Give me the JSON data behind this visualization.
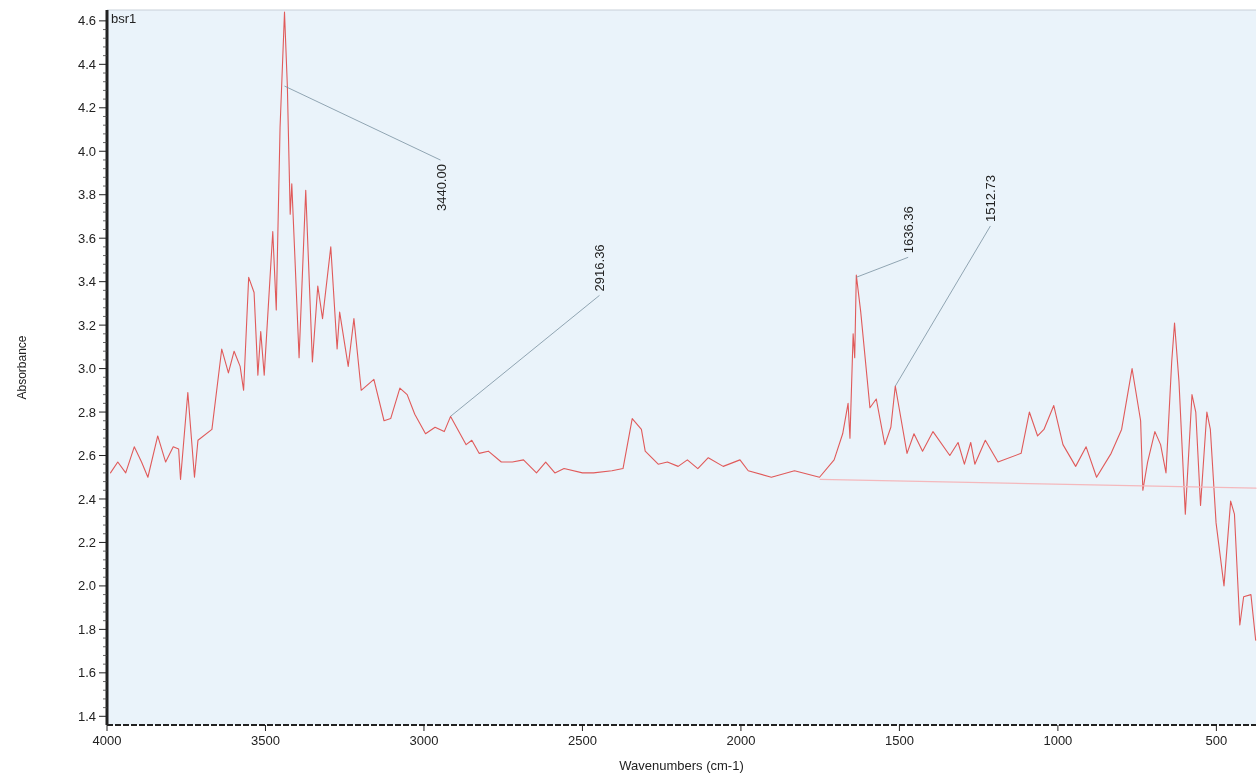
{
  "chart_data": {
    "type": "line",
    "title": "bsr1",
    "xlabel": "Wavenumbers (cm-1)",
    "ylabel": "Absorbance",
    "xlim": [
      4000,
      375
    ],
    "xticks": [
      4000,
      3500,
      3000,
      2500,
      2000,
      1500,
      1000,
      500
    ],
    "ylim": [
      1.36,
      4.65
    ],
    "yticks": [
      1.4,
      1.6,
      1.8,
      {
        "value": 2,
        "label": "2.0"
      },
      2.2,
      2.4,
      2.6,
      2.8,
      {
        "value": 3,
        "label": "3.0"
      },
      3.2,
      3.4,
      3.6,
      3.8,
      {
        "value": 4,
        "label": "4.0"
      },
      4.2,
      4.4,
      4.6
    ],
    "grid": false,
    "marker": "none",
    "line_style": "solid",
    "series": [
      {
        "color": "#e05a5a",
        "x": [
          3989,
          3966,
          3941,
          3914,
          3891,
          3871,
          3840,
          3815,
          3791,
          3774,
          3768,
          3745,
          3724,
          3713,
          3669,
          3638,
          3617,
          3599,
          3580,
          3569,
          3553,
          3536,
          3524,
          3515,
          3504,
          3477,
          3466,
          3454,
          3440,
          3431,
          3422,
          3417,
          3408,
          3394,
          3373,
          3352,
          3335,
          3320,
          3294,
          3274,
          3266,
          3239,
          3221,
          3198,
          3158,
          3126,
          3105,
          3076,
          3053,
          3029,
          2995,
          2965,
          2936,
          2916,
          2867,
          2849,
          2826,
          2797,
          2756,
          2721,
          2686,
          2645,
          2616,
          2587,
          2558,
          2500,
          2465,
          2407,
          2372,
          2343,
          2314,
          2302,
          2261,
          2232,
          2198,
          2169,
          2136,
          2103,
          2056,
          2003,
          1977,
          1904,
          1831,
          1752,
          1706,
          1679,
          1662,
          1656,
          1646,
          1641,
          1636,
          1622,
          1593,
          1573,
          1546,
          1527,
          1513,
          1476,
          1454,
          1427,
          1394,
          1341,
          1315,
          1295,
          1275,
          1262,
          1229,
          1189,
          1116,
          1090,
          1064,
          1044,
          1013,
          984,
          944,
          911,
          878,
          832,
          799,
          766,
          739,
          732,
          717,
          694,
          676,
          659,
          641,
          632,
          618,
          598,
          577,
          565,
          550,
          530,
          519,
          501,
          476,
          455,
          443,
          426,
          414,
          391,
          376
        ],
        "values": [
          2.52,
          2.57,
          2.52,
          2.64,
          2.57,
          2.5,
          2.69,
          2.57,
          2.64,
          2.63,
          2.49,
          2.89,
          2.5,
          2.67,
          2.72,
          3.09,
          2.98,
          3.08,
          3.01,
          2.9,
          3.42,
          3.35,
          2.97,
          3.17,
          2.97,
          3.63,
          3.27,
          4.11,
          4.64,
          4.3,
          3.71,
          3.85,
          3.54,
          3.05,
          3.82,
          3.03,
          3.38,
          3.23,
          3.56,
          3.09,
          3.26,
          3.01,
          3.23,
          2.9,
          2.95,
          2.76,
          2.77,
          2.91,
          2.88,
          2.79,
          2.7,
          2.73,
          2.71,
          2.78,
          2.65,
          2.67,
          2.61,
          2.62,
          2.57,
          2.57,
          2.58,
          2.52,
          2.57,
          2.52,
          2.54,
          2.52,
          2.52,
          2.53,
          2.54,
          2.77,
          2.72,
          2.62,
          2.56,
          2.57,
          2.55,
          2.58,
          2.54,
          2.59,
          2.55,
          2.58,
          2.53,
          2.5,
          2.53,
          2.5,
          2.58,
          2.7,
          2.84,
          2.68,
          3.16,
          3.05,
          3.43,
          3.26,
          2.82,
          2.86,
          2.65,
          2.73,
          2.92,
          2.61,
          2.7,
          2.62,
          2.71,
          2.6,
          2.66,
          2.56,
          2.66,
          2.56,
          2.67,
          2.57,
          2.61,
          2.8,
          2.69,
          2.72,
          2.83,
          2.65,
          2.55,
          2.64,
          2.5,
          2.61,
          2.72,
          3.0,
          2.76,
          2.44,
          2.57,
          2.71,
          2.65,
          2.52,
          3.03,
          3.21,
          2.94,
          2.33,
          2.88,
          2.8,
          2.37,
          2.8,
          2.72,
          2.29,
          2.0,
          2.39,
          2.33,
          1.82,
          1.95,
          1.96,
          1.75
        ]
      },
      {
        "color": "#f4b8bc",
        "x": [
          1750,
          375
        ],
        "values": [
          2.49,
          2.45
        ]
      }
    ],
    "annotations": [
      {
        "text": "3440.00",
        "x": 3440,
        "y": 4.3
      },
      {
        "text": "2916.36",
        "x": 2916.36,
        "y": 2.78
      },
      {
        "text": "1636.36",
        "x": 1636.36,
        "y": 3.42
      },
      {
        "text": "1512.73",
        "x": 1512.73,
        "y": 2.92
      }
    ]
  }
}
